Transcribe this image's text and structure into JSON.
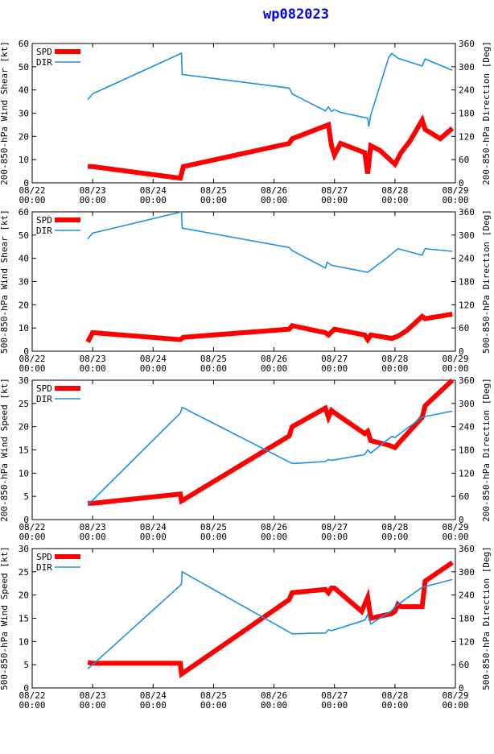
{
  "title": "wp082023",
  "colors": {
    "spd": "#ff0000",
    "dir": "#1e90e6",
    "axis": "#000000",
    "title": "#0000ee"
  },
  "x_ticks": [
    {
      "day": 0,
      "date": "08/22",
      "time": "00:00"
    },
    {
      "day": 1,
      "date": "08/23",
      "time": "00:00"
    },
    {
      "day": 2,
      "date": "08/24",
      "time": "00:00"
    },
    {
      "day": 3,
      "date": "08/25",
      "time": "00:00"
    },
    {
      "day": 4,
      "date": "08/26",
      "time": "00:00"
    },
    {
      "day": 5,
      "date": "08/27",
      "time": "00:00"
    },
    {
      "day": 6,
      "date": "08/28",
      "time": "00:00"
    },
    {
      "day": 7,
      "date": "08/29",
      "time": "00:00"
    }
  ],
  "legend": {
    "spd": "SPD",
    "dir": "DIR"
  },
  "chart_data": [
    {
      "type": "line",
      "ylabel_left": "200-850-hPa Wind Shear [kt]",
      "ylabel_right": "200-850-hPa Direction [Deg]",
      "ylim_left": [
        0,
        60
      ],
      "yticks_left": [
        0,
        10,
        20,
        30,
        40,
        50,
        60
      ],
      "ylim_right": [
        0,
        360
      ],
      "yticks_right": [
        0,
        60,
        120,
        180,
        240,
        300,
        360
      ],
      "xlim": [
        0,
        7
      ],
      "series": [
        {
          "name": "SPD",
          "axis": "left",
          "x": [
            0.92,
            1.0,
            2.45,
            2.5,
            4.25,
            4.3,
            4.45,
            4.9,
            4.95,
            5.0,
            5.1,
            5.5,
            5.55,
            5.6,
            5.75,
            6.0,
            6.1,
            6.25,
            6.45,
            6.5,
            6.75,
            6.95
          ],
          "y": [
            7,
            7,
            2,
            7,
            17,
            19,
            20.5,
            25,
            16,
            12,
            17,
            13,
            4,
            16,
            14,
            8,
            13,
            18,
            27,
            23,
            19,
            23.5
          ]
        },
        {
          "name": "DIR",
          "axis": "right",
          "x": [
            0.92,
            1.0,
            2.47,
            2.48,
            4.25,
            4.3,
            4.85,
            4.9,
            4.95,
            5.0,
            5.1,
            5.55,
            5.57,
            5.6,
            5.9,
            5.95,
            6.05,
            6.45,
            6.5,
            6.95
          ],
          "y": [
            215,
            230,
            335,
            280,
            245,
            230,
            186,
            196,
            185,
            189,
            182,
            167,
            145,
            175,
            325,
            334,
            322,
            302,
            320,
            291
          ]
        }
      ]
    },
    {
      "type": "line",
      "ylabel_left": "500-850-hPa Wind Shear [kt]",
      "ylabel_right": "500-850-hPa Direction [Deg]",
      "ylim_left": [
        0,
        60
      ],
      "yticks_left": [
        0,
        10,
        20,
        30,
        40,
        50,
        60
      ],
      "ylim_right": [
        0,
        360
      ],
      "yticks_right": [
        0,
        60,
        120,
        180,
        240,
        300,
        360
      ],
      "xlim": [
        0,
        7
      ],
      "series": [
        {
          "name": "SPD",
          "axis": "left",
          "x": [
            0.92,
            1.0,
            2.45,
            2.5,
            4.25,
            4.3,
            4.85,
            4.9,
            5.0,
            5.5,
            5.55,
            5.6,
            5.95,
            6.05,
            6.2,
            6.45,
            6.5,
            6.95
          ],
          "y": [
            4,
            8,
            5,
            6,
            9.5,
            11,
            8,
            7,
            9.5,
            7,
            5,
            7,
            5.5,
            6.5,
            9,
            15,
            14,
            16
          ]
        },
        {
          "name": "DIR",
          "axis": "right",
          "x": [
            0.92,
            1.0,
            2.47,
            2.48,
            4.25,
            4.3,
            4.85,
            4.88,
            4.95,
            5.55,
            5.6,
            5.9,
            6.05,
            6.45,
            6.5,
            6.95
          ],
          "y": [
            290,
            305,
            360,
            318,
            268,
            260,
            215,
            230,
            222,
            204,
            210,
            245,
            265,
            248,
            265,
            258
          ]
        }
      ]
    },
    {
      "type": "line",
      "ylabel_left": "200-850-hPa Wind Speed [kt]",
      "ylabel_right": "200-850-hPa Direction [Deg]",
      "ylim_left": [
        0,
        30
      ],
      "yticks_left": [
        0,
        5,
        10,
        15,
        20,
        25,
        30
      ],
      "ylim_right": [
        0,
        360
      ],
      "yticks_right": [
        0,
        60,
        120,
        180,
        240,
        300,
        360
      ],
      "xlim": [
        0,
        7
      ],
      "series": [
        {
          "name": "SPD",
          "axis": "left",
          "x": [
            0.92,
            1.0,
            2.45,
            2.47,
            4.25,
            4.3,
            4.85,
            4.9,
            4.95,
            5.0,
            5.5,
            5.55,
            5.6,
            5.9,
            6.0,
            6.1,
            6.45,
            6.5,
            6.95
          ],
          "y": [
            3.5,
            3.5,
            5.5,
            4,
            18,
            20,
            24,
            22,
            23.5,
            23,
            18.5,
            19,
            17,
            16,
            15.5,
            17,
            22,
            24.5,
            30
          ]
        },
        {
          "name": "DIR",
          "axis": "right",
          "x": [
            0.92,
            1.0,
            2.45,
            2.48,
            4.3,
            4.35,
            4.85,
            4.9,
            4.95,
            5.5,
            5.55,
            5.6,
            5.95,
            6.0,
            6.45,
            6.95
          ],
          "y": [
            40,
            50,
            275,
            290,
            145,
            145,
            150,
            155,
            153,
            168,
            180,
            172,
            215,
            212,
            265,
            280
          ]
        }
      ]
    },
    {
      "type": "line",
      "ylabel_left": "500-850-hPa Wind Speed [kt]",
      "ylabel_right": "500-850-hPa Direction [Deg]",
      "ylim_left": [
        0,
        30
      ],
      "yticks_left": [
        0,
        5,
        10,
        15,
        20,
        25,
        30
      ],
      "ylim_right": [
        0,
        360
      ],
      "yticks_right": [
        0,
        60,
        120,
        180,
        240,
        300,
        360
      ],
      "xlim": [
        0,
        7
      ],
      "series": [
        {
          "name": "SPD",
          "axis": "left",
          "x": [
            0.92,
            1.0,
            2.45,
            2.47,
            4.25,
            4.3,
            4.85,
            4.9,
            4.95,
            5.0,
            5.45,
            5.5,
            5.55,
            5.6,
            5.95,
            6.0,
            6.05,
            6.1,
            6.45,
            6.5,
            6.95
          ],
          "y": [
            5.5,
            5.3,
            5.3,
            3,
            19,
            20.5,
            21.2,
            20.5,
            21.5,
            21.5,
            16.5,
            18,
            19.5,
            15,
            16,
            16.5,
            18,
            17.5,
            17.5,
            23,
            27
          ]
        },
        {
          "name": "DIR",
          "axis": "right",
          "x": [
            0.92,
            1.0,
            2.45,
            2.47,
            2.48,
            4.3,
            4.35,
            4.85,
            4.9,
            4.95,
            5.5,
            5.55,
            5.6,
            5.95,
            6.0,
            6.45,
            6.95
          ],
          "y": [
            50,
            60,
            265,
            270,
            300,
            140,
            140,
            142,
            150,
            148,
            175,
            190,
            165,
            200,
            210,
            260,
            280
          ]
        }
      ]
    }
  ]
}
